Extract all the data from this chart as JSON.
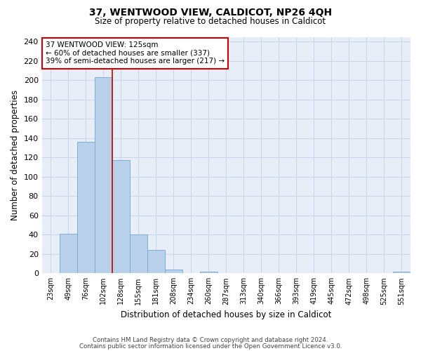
{
  "title": "37, WENTWOOD VIEW, CALDICOT, NP26 4QH",
  "subtitle": "Size of property relative to detached houses in Caldicot",
  "xlabel": "Distribution of detached houses by size in Caldicot",
  "ylabel": "Number of detached properties",
  "bin_labels": [
    "23sqm",
    "49sqm",
    "76sqm",
    "102sqm",
    "128sqm",
    "155sqm",
    "181sqm",
    "208sqm",
    "234sqm",
    "260sqm",
    "287sqm",
    "313sqm",
    "340sqm",
    "366sqm",
    "393sqm",
    "419sqm",
    "445sqm",
    "472sqm",
    "498sqm",
    "525sqm",
    "551sqm"
  ],
  "bar_values": [
    0,
    41,
    136,
    203,
    117,
    40,
    24,
    4,
    0,
    2,
    0,
    0,
    0,
    0,
    0,
    0,
    0,
    0,
    0,
    0,
    2
  ],
  "bar_color": "#b8d0ea",
  "bar_edgecolor": "#7aafd4",
  "vline_color": "#cc0000",
  "vline_bin_index": 4,
  "annotation_text": "37 WENTWOOD VIEW: 125sqm\n← 60% of detached houses are smaller (337)\n39% of semi-detached houses are larger (217) →",
  "annotation_box_edgecolor": "#cc0000",
  "ylim": [
    0,
    245
  ],
  "yticks": [
    0,
    20,
    40,
    60,
    80,
    100,
    120,
    140,
    160,
    180,
    200,
    220,
    240
  ],
  "grid_color": "#c8d4e8",
  "background_color": "#e8eef8",
  "footer_line1": "Contains HM Land Registry data © Crown copyright and database right 2024.",
  "footer_line2": "Contains public sector information licensed under the Open Government Licence v3.0."
}
